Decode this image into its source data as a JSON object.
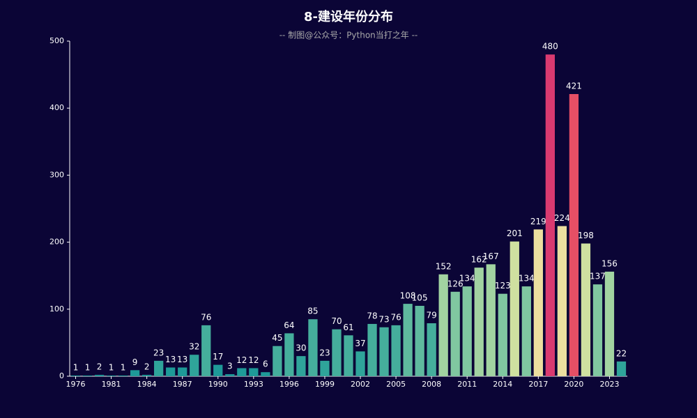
{
  "chart_data": {
    "type": "bar",
    "title": "8-建设年份分布",
    "subtitle": "-- 制图@公众号：Python当打之年 --",
    "categories": [
      "1976",
      null,
      null,
      "1981",
      null,
      null,
      "1984",
      null,
      null,
      "1987",
      null,
      null,
      "1990",
      null,
      null,
      "1993",
      null,
      null,
      "1996",
      null,
      null,
      "1999",
      null,
      null,
      "2002",
      null,
      null,
      "2005",
      null,
      null,
      "2008",
      null,
      null,
      "2011",
      null,
      null,
      "2014",
      null,
      null,
      "2017",
      null,
      null,
      "2020",
      null,
      null,
      "2023",
      null
    ],
    "values": [
      1,
      1,
      2,
      1,
      1,
      9,
      2,
      23,
      13,
      13,
      32,
      76,
      17,
      3,
      12,
      12,
      6,
      45,
      64,
      30,
      85,
      23,
      70,
      61,
      37,
      78,
      73,
      76,
      108,
      105,
      79,
      152,
      126,
      134,
      162,
      167,
      123,
      201,
      134,
      219,
      480,
      224,
      421,
      198,
      137,
      156,
      22
    ],
    "colors": [
      "#1e9a98",
      "#1e9a98",
      "#1e9a98",
      "#1e9a98",
      "#1e9a98",
      "#1e9a98",
      "#1e9a98",
      "#2fa49a",
      "#1e9a98",
      "#1e9a98",
      "#2fa49a",
      "#45ae9c",
      "#1e9a98",
      "#1e9a98",
      "#1e9a98",
      "#1e9a98",
      "#1e9a98",
      "#45ae9c",
      "#45ae9c",
      "#2fa49a",
      "#45ae9c",
      "#2fa49a",
      "#45ae9c",
      "#45ae9c",
      "#2fa49a",
      "#45ae9c",
      "#45ae9c",
      "#45ae9c",
      "#5fb99e",
      "#5fb99e",
      "#45ae9c",
      "#a2d3a1",
      "#80c7a0",
      "#80c7a0",
      "#a2d3a1",
      "#a2d3a1",
      "#80c7a0",
      "#cfe0a0",
      "#80c7a0",
      "#ecdf9f",
      "#d93a70",
      "#ecdf9f",
      "#e64f65",
      "#cfe0a0",
      "#80c7a0",
      "#a2d3a1",
      "#2fa49a"
    ],
    "ylim": [
      0,
      500
    ],
    "yticks": [
      0,
      100,
      200,
      300,
      400,
      500
    ]
  }
}
